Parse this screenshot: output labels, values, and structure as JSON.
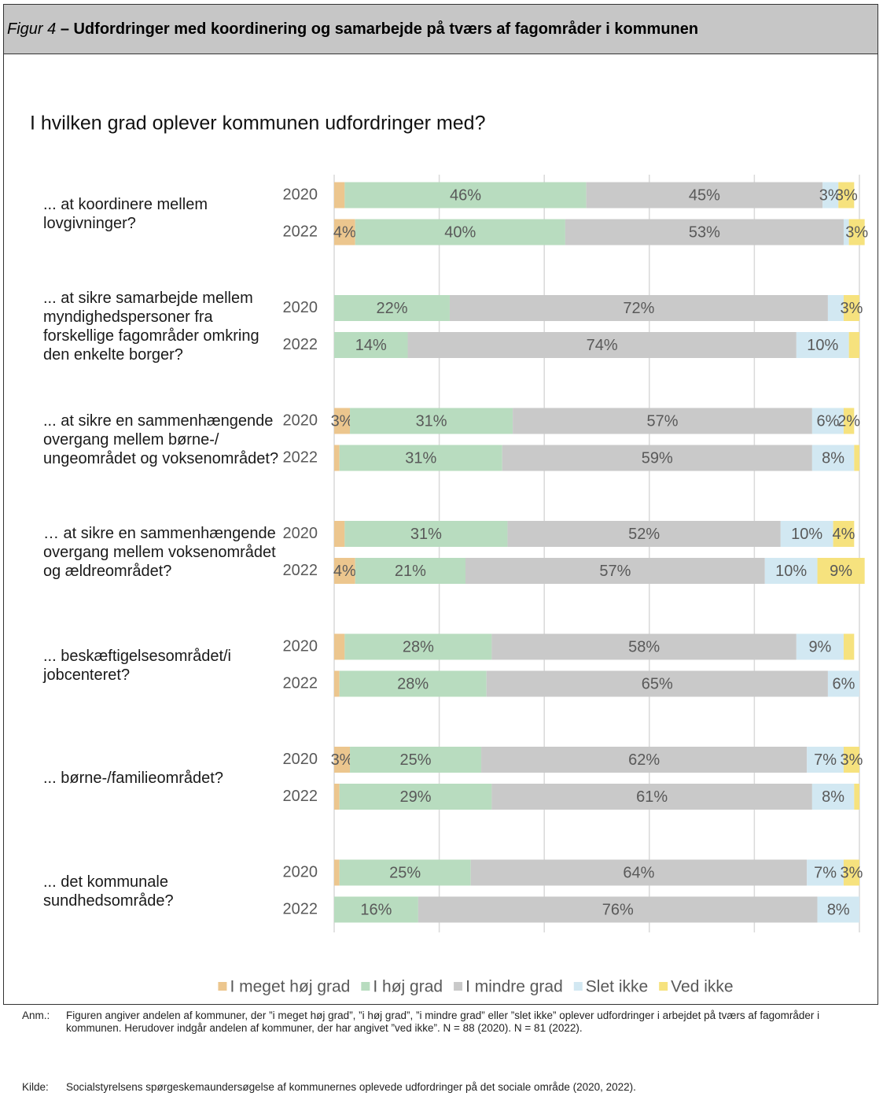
{
  "figure": {
    "label": "Figur 4",
    "title": "– Udfordringer med koordinering og samarbejde på tværs af fagområder i kommunen"
  },
  "chart_data": {
    "type": "stacked_bar_horizontal",
    "title": "I hvilken grad oplever kommunen udfordringer med?",
    "groups": [
      "... at koordinere mellem lovgivninger?",
      "... at sikre samarbejde mellem myndighedspersoner fra forskellige fagområder omkring den enkelte borger?",
      "... at sikre en sammenhængende overgang mellem børne-/ ungeområdet og voksenområdet?",
      "… at sikre en sammenhængende overgang mellem voksenområdet og ældreområdet?",
      "... beskæftigelsesområdet/i jobcenteret?",
      "... børne-/familieområdet?",
      "... det kommunale sundhedsområde?"
    ],
    "categories": [
      "2020",
      "2022",
      "2020",
      "2022",
      "2020",
      "2022",
      "2020",
      "2022",
      "2020",
      "2022",
      "2020",
      "2022",
      "2020",
      "2022"
    ],
    "series": [
      {
        "name": "I meget høj grad",
        "color": "#ecc68e",
        "values": [
          2,
          4,
          0,
          0,
          3,
          1,
          2,
          4,
          2,
          1,
          3,
          1,
          1,
          0
        ],
        "value_labels": [
          null,
          "4%",
          null,
          null,
          "3%",
          null,
          null,
          "4%",
          null,
          null,
          "3%",
          null,
          null,
          null
        ]
      },
      {
        "name": "I høj grad",
        "color": "#b8dcbf",
        "values": [
          46,
          40,
          22,
          14,
          31,
          31,
          31,
          21,
          28,
          28,
          25,
          29,
          25,
          16
        ],
        "value_labels": [
          "46%",
          "40%",
          "22%",
          "14%",
          "31%",
          "31%",
          "31%",
          "21%",
          "28%",
          "28%",
          "25%",
          "29%",
          "25%",
          "16%"
        ]
      },
      {
        "name": "I mindre grad",
        "color": "#c9c9c9",
        "values": [
          45,
          53,
          72,
          74,
          57,
          59,
          52,
          57,
          58,
          65,
          62,
          61,
          64,
          76
        ],
        "value_labels": [
          "45%",
          "53%",
          "72%",
          "74%",
          "57%",
          "59%",
          "52%",
          "57%",
          "58%",
          "65%",
          "62%",
          "61%",
          "64%",
          "76%"
        ]
      },
      {
        "name": "Slet ikke",
        "color": "#d2e8f2",
        "values": [
          3,
          1,
          3,
          10,
          6,
          8,
          10,
          10,
          9,
          6,
          7,
          8,
          7,
          8
        ],
        "value_labels": [
          "3%",
          null,
          null,
          "10%",
          "6%",
          "8%",
          "10%",
          "10%",
          "9%",
          "6%",
          "7%",
          "8%",
          "7%",
          "8%"
        ]
      },
      {
        "name": "Ved ikke",
        "color": "#f6e27e",
        "values": [
          3,
          3,
          3,
          2,
          2,
          1,
          4,
          9,
          2,
          0,
          3,
          1,
          3,
          0
        ],
        "value_labels": [
          "3%",
          "3%",
          "3%",
          null,
          "2%",
          null,
          "4%",
          "9%",
          null,
          null,
          "3%",
          null,
          "3%",
          null
        ]
      }
    ],
    "xlim": [
      0,
      100
    ],
    "xticks": [
      0,
      20,
      40,
      60,
      80,
      100
    ],
    "grid": true,
    "legend": "bottom"
  },
  "notes": [
    {
      "label": "Anm.:",
      "text": "Figuren angiver andelen af kommuner, der ”i meget høj grad”, ”i høj grad”, ”i mindre grad” eller ”slet ikke” oplever udfordringer i arbejdet på tværs af fagområder i kommunen. Herudover indgår andelen af kommuner, der har angivet ”ved ikke”. N = 88 (2020). N = 81 (2022)."
    },
    {
      "label": "Kilde:",
      "text": "Socialstyrelsens spørgeskemaundersøgelse af kommunernes oplevede udfordringer på det sociale område (2020, 2022)."
    }
  ]
}
